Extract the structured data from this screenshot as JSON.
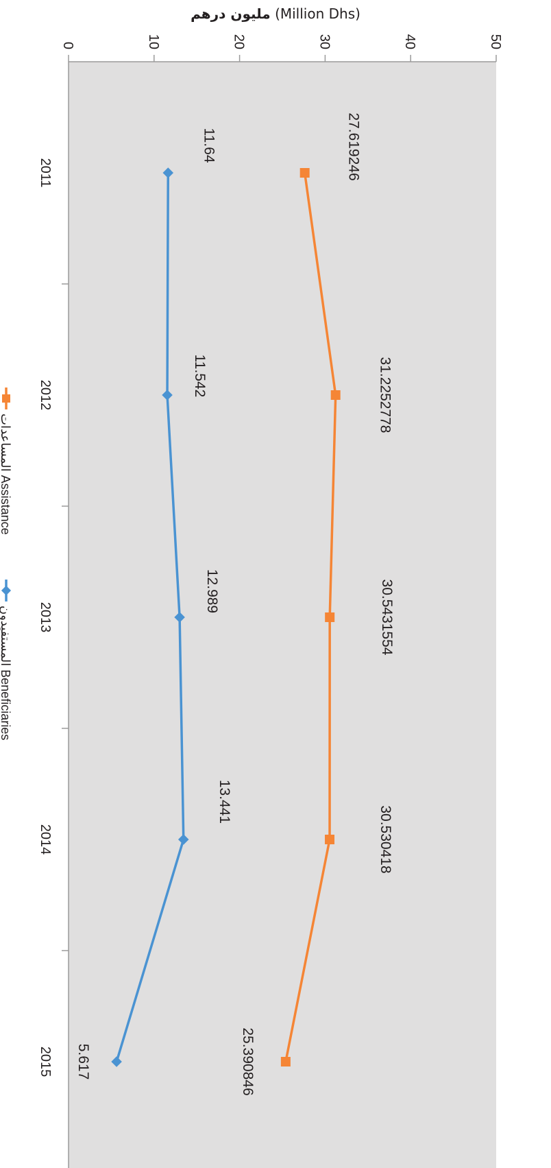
{
  "chart_data": {
    "type": "line",
    "title": "مليون درهم (Million Dhs)",
    "title_ar": "مليون درهم",
    "title_en": "(Million Dhs)",
    "orientation": "rotated-90-clockwise",
    "categories": [
      "2011",
      "2012",
      "2013",
      "2014",
      "2015"
    ],
    "ylim": [
      0,
      50
    ],
    "yticks": [
      "0",
      "10",
      "20",
      "30",
      "40",
      "50"
    ],
    "grid": false,
    "plot_background": "#e0dfdf",
    "legend_position": "left",
    "series": [
      {
        "name": "المساعدات Assistance",
        "color": "#f58535",
        "marker": "square",
        "values": [
          27.619246,
          31.2252778,
          30.5431554,
          30.530418,
          25.390846
        ],
        "labels": [
          "27.619246",
          "31.2252778",
          "30.5431554",
          "30.530418",
          "25.390846"
        ]
      },
      {
        "name": "المستفيدون Beneficiaries",
        "color": "#4a93d2",
        "marker": "diamond",
        "values": [
          11.64,
          11.542,
          12.989,
          13.441,
          5.617
        ],
        "labels": [
          "11.64",
          "11.542",
          "12.989",
          "13.441",
          "5.617"
        ]
      }
    ]
  }
}
